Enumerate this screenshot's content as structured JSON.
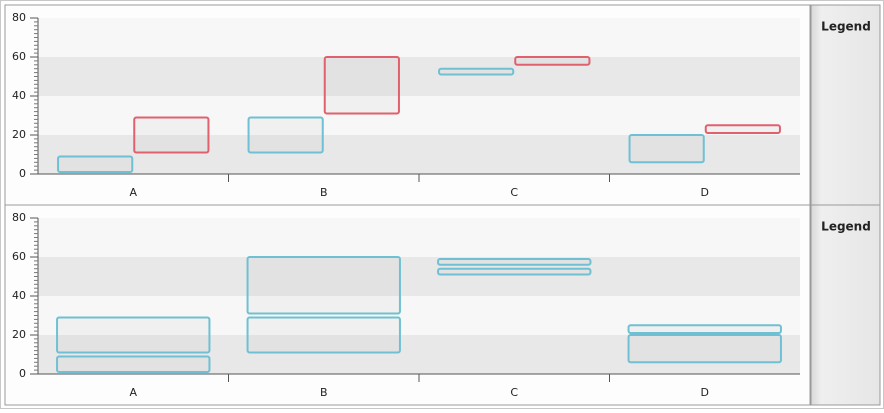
{
  "chart_data": [
    {
      "type": "range-bar",
      "grouping": "clustered",
      "legend_title": "Legend",
      "categories": [
        "A",
        "B",
        "C",
        "D"
      ],
      "series": [
        {
          "color": "#6fc0d2",
          "low": [
            1,
            11,
            51,
            6
          ],
          "high": [
            9,
            29,
            54,
            20
          ]
        },
        {
          "color": "#e0606e",
          "low": [
            11,
            31,
            56,
            21
          ],
          "high": [
            29,
            60,
            60,
            25
          ]
        }
      ],
      "ylim": [
        0,
        80
      ],
      "yticks": [
        0,
        20,
        40,
        60,
        80
      ],
      "stripes": true
    },
    {
      "type": "range-bar",
      "grouping": "overlay",
      "legend_title": "Legend",
      "categories": [
        "A",
        "B",
        "C",
        "D"
      ],
      "series": [
        {
          "color": "#6fc0d2",
          "low": [
            1,
            11,
            51,
            6
          ],
          "high": [
            9,
            29,
            54,
            20
          ]
        },
        {
          "color": "#6fc0d2",
          "low": [
            11,
            31,
            56,
            21
          ],
          "high": [
            29,
            60,
            59,
            25
          ]
        }
      ],
      "ylim": [
        0,
        80
      ],
      "yticks": [
        0,
        20,
        40,
        60,
        80
      ],
      "stripes": true
    }
  ]
}
